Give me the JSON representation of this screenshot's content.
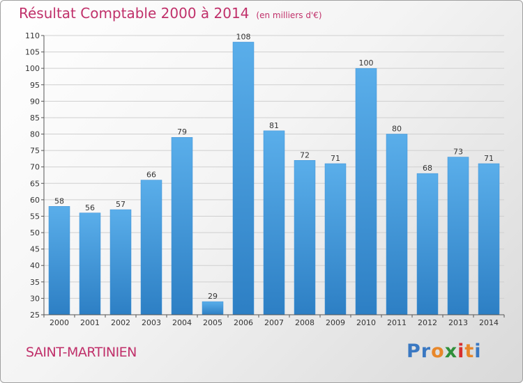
{
  "header": {
    "title": "Résultat Comptable 2000 à 2014",
    "subtitle": "(en milliers d'€)"
  },
  "footer": {
    "commune": "SAINT-MARTINIEN",
    "brand": "Proxiti",
    "brand_letters": [
      "P",
      "r",
      "o",
      "x",
      "i",
      "t",
      "i"
    ],
    "brand_colors": [
      "#3a78c2",
      "#3a78c2",
      "#e8872a",
      "#2f8f3a",
      "#d62f2f",
      "#e8872a",
      "#3a78c2"
    ]
  },
  "chart_data": {
    "type": "bar",
    "categories": [
      "2000",
      "2001",
      "2002",
      "2003",
      "2004",
      "2005",
      "2006",
      "2007",
      "2008",
      "2009",
      "2010",
      "2011",
      "2012",
      "2013",
      "2014"
    ],
    "values": [
      58,
      56,
      57,
      66,
      79,
      29,
      108,
      81,
      72,
      71,
      100,
      80,
      68,
      73,
      71
    ],
    "title": "Résultat Comptable 2000 à 2014",
    "ylim": [
      25,
      110
    ],
    "yticks": [
      25,
      30,
      35,
      40,
      45,
      50,
      55,
      60,
      65,
      70,
      75,
      80,
      85,
      90,
      95,
      100,
      105,
      110
    ],
    "grid": true,
    "bar_color": "#4a9fe0"
  }
}
